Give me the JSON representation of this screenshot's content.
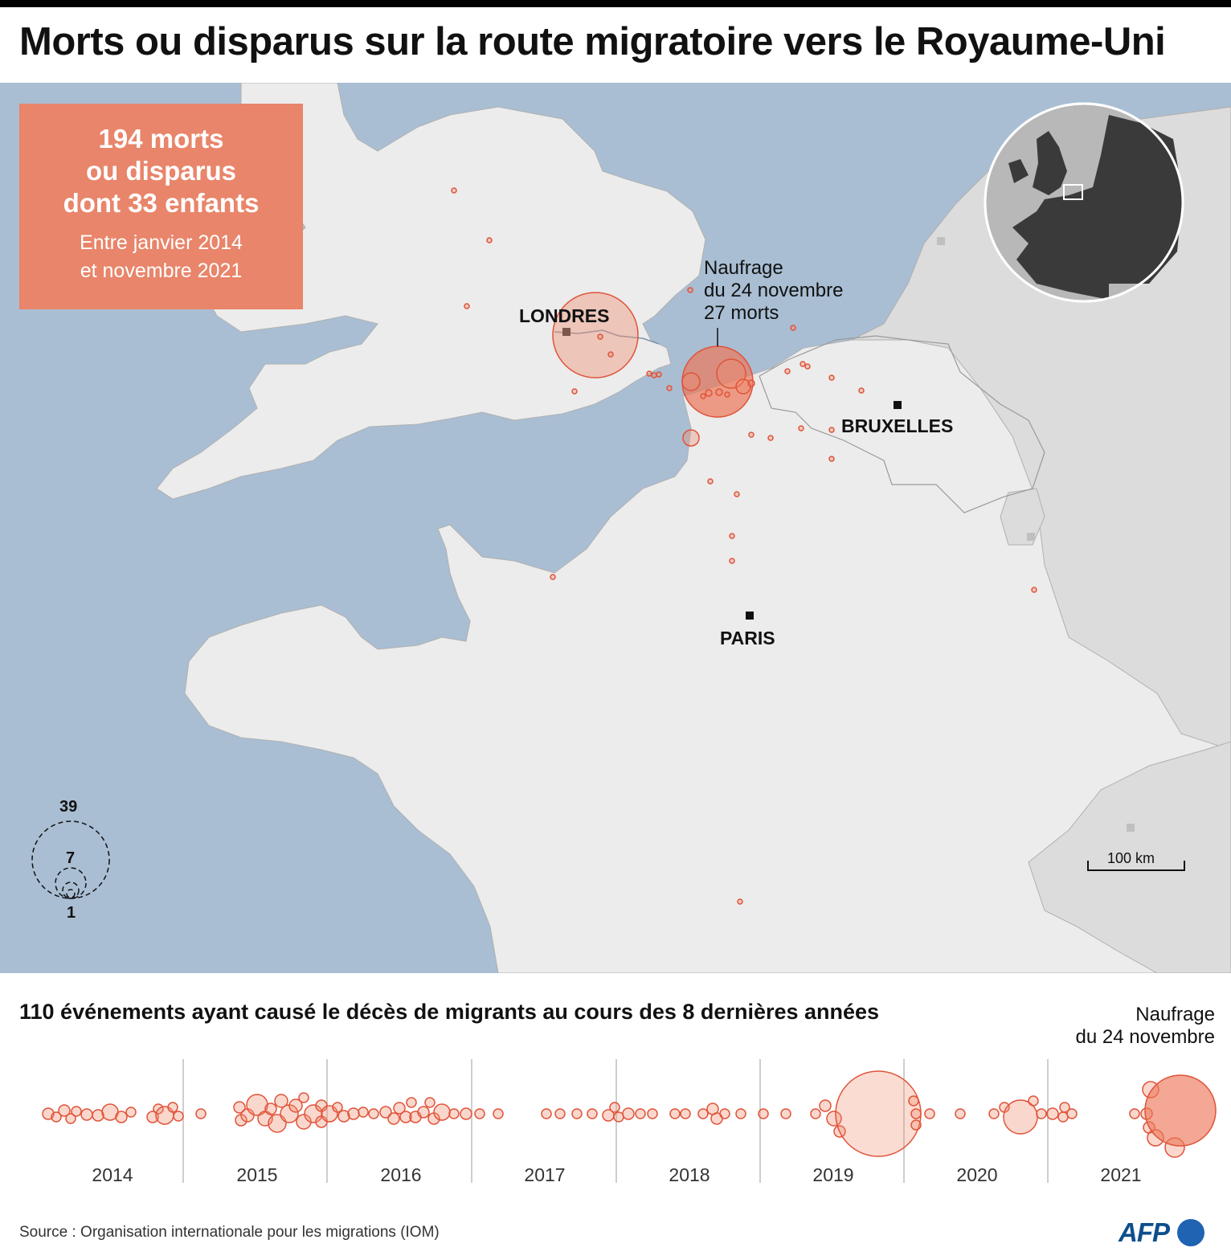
{
  "title": "Morts ou disparus sur la route migratoire vers le Royaume-Uni",
  "summary": {
    "line1": "194 morts",
    "line2": "ou disparus",
    "line3": "dont 33 enfants",
    "period1": "Entre janvier 2014",
    "period2": "et novembre 2021"
  },
  "cities": {
    "london": "LONDRES",
    "brussels": "BRUXELLES",
    "paris": "PARIS"
  },
  "shipwreck_annotation": {
    "line1": "Naufrage",
    "line2": "du 24 novembre",
    "line3": "27 morts"
  },
  "legend": {
    "max": "39",
    "mid": "7",
    "min": "1"
  },
  "scale": "100 km",
  "timeline": {
    "subtitle": "110 événements ayant causé le décès de migrants au cours des 8 dernières années",
    "annotation_line1": "Naufrage",
    "annotation_line2": "du 24 novembre",
    "years": [
      "2014",
      "2015",
      "2016",
      "2017",
      "2018",
      "2019",
      "2020",
      "2021"
    ]
  },
  "source": "Source : Organisation internationale pour les migrations (IOM)",
  "logo": "AFP",
  "colors": {
    "sea": "#a9bed3",
    "land_focus": "#ececec",
    "land_other": "#dcdcdc",
    "marker_fill": "rgba(240,140,110,0.35)",
    "marker_stroke": "#e0533a",
    "summary_box": "#e8856a"
  }
}
